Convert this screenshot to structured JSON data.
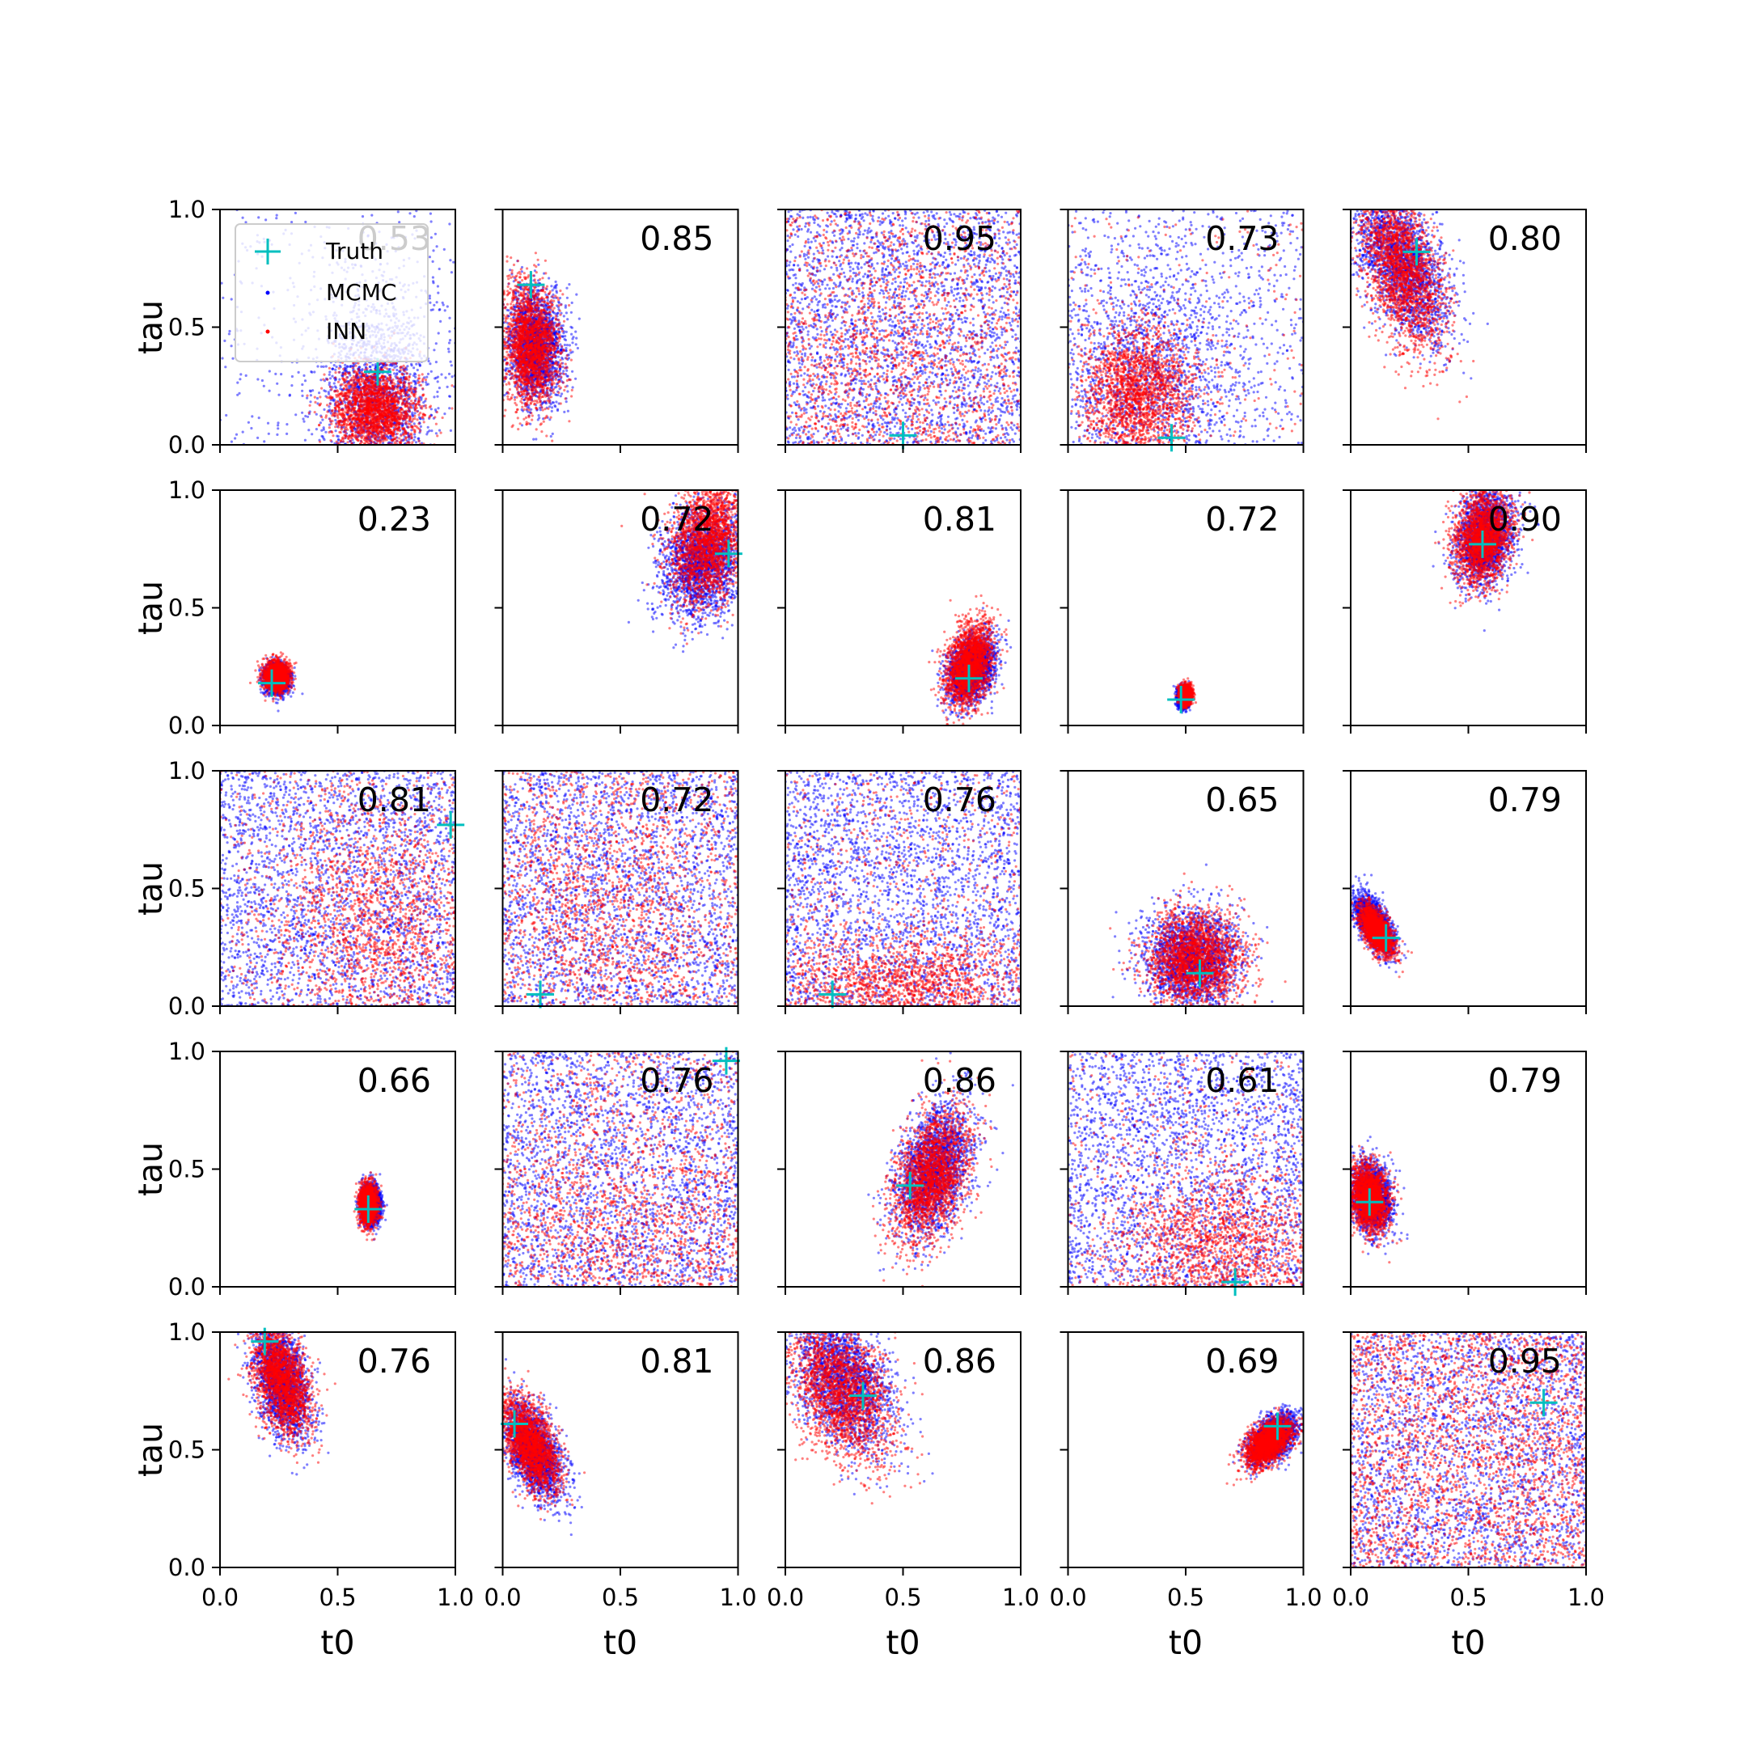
{
  "chart_data": {
    "type": "scatter",
    "rows": 5,
    "cols": 5,
    "xlabel": "t0",
    "ylabel": "tau",
    "xlim": [
      0,
      1
    ],
    "ylim": [
      0,
      1
    ],
    "xticks": [
      "0.0",
      "0.5",
      "1.0"
    ],
    "yticks": [
      "0.0",
      "0.5",
      "1.0"
    ],
    "colors": {
      "truth": "#00bfbf",
      "mcmc": "#0000ff",
      "inn": "#ff0000"
    },
    "legend": {
      "placement": "upper-left of first panel",
      "entries": [
        {
          "label": "Truth",
          "marker": "plus",
          "color": "#00bfbf"
        },
        {
          "label": "MCMC",
          "marker": "dot",
          "color": "#0000ff"
        },
        {
          "label": "INN",
          "marker": "dot",
          "color": "#ff0000"
        }
      ]
    },
    "panels": [
      {
        "label": "0.53",
        "truth": [
          0.67,
          0.31
        ],
        "mcmc": {
          "cx": 0.66,
          "cy": 0.2,
          "sx": 0.12,
          "sy": 0.22,
          "rho": 0.0,
          "uniform": 0.15
        },
        "inn": {
          "cx": 0.66,
          "cy": 0.15,
          "sx": 0.09,
          "sy": 0.09,
          "rho": 0.0
        }
      },
      {
        "label": "0.85",
        "truth": [
          0.12,
          0.68
        ],
        "mcmc": {
          "cx": 0.14,
          "cy": 0.42,
          "sx": 0.06,
          "sy": 0.12,
          "rho": -0.1
        },
        "inn": {
          "cx": 0.12,
          "cy": 0.42,
          "sx": 0.06,
          "sy": 0.13,
          "rho": -0.1
        }
      },
      {
        "label": "0.95",
        "truth": [
          0.5,
          0.04
        ],
        "mcmc": {
          "cx": 0.5,
          "cy": 0.5,
          "uniform": 1.0
        },
        "inn": {
          "cx": 0.45,
          "cy": 0.3,
          "sx": 0.35,
          "sy": 0.35,
          "rho": 0.0,
          "uniform": 0.5
        }
      },
      {
        "label": "0.73",
        "truth": [
          0.44,
          0.03
        ],
        "mcmc": {
          "cx": 0.35,
          "cy": 0.3,
          "sx": 0.2,
          "sy": 0.25,
          "rho": 0.0,
          "uniform": 0.3
        },
        "inn": {
          "cx": 0.3,
          "cy": 0.22,
          "sx": 0.12,
          "sy": 0.14,
          "rho": 0.0,
          "uniform": 0.1
        }
      },
      {
        "label": "0.80",
        "truth": [
          0.28,
          0.82
        ],
        "mcmc": {
          "cx": 0.22,
          "cy": 0.78,
          "sx": 0.1,
          "sy": 0.16,
          "rho": -0.5
        },
        "inn": {
          "cx": 0.22,
          "cy": 0.75,
          "sx": 0.09,
          "sy": 0.17,
          "rho": -0.5
        }
      },
      {
        "label": "0.23",
        "truth": [
          0.22,
          0.18
        ],
        "mcmc": {
          "cx": 0.24,
          "cy": 0.2,
          "sx": 0.025,
          "sy": 0.03,
          "rho": 0.0
        },
        "inn": {
          "cx": 0.24,
          "cy": 0.21,
          "sx": 0.025,
          "sy": 0.03,
          "rho": 0.0
        }
      },
      {
        "label": "0.72",
        "truth": [
          0.96,
          0.73
        ],
        "mcmc": {
          "cx": 0.85,
          "cy": 0.7,
          "sx": 0.09,
          "sy": 0.12,
          "rho": 0.2
        },
        "inn": {
          "cx": 0.87,
          "cy": 0.78,
          "sx": 0.08,
          "sy": 0.13,
          "rho": 0.2
        }
      },
      {
        "label": "0.81",
        "truth": [
          0.78,
          0.2
        ],
        "mcmc": {
          "cx": 0.79,
          "cy": 0.24,
          "sx": 0.05,
          "sy": 0.07,
          "rho": 0.3
        },
        "inn": {
          "cx": 0.78,
          "cy": 0.26,
          "sx": 0.05,
          "sy": 0.09,
          "rho": 0.3
        }
      },
      {
        "label": "0.72",
        "truth": [
          0.48,
          0.11
        ],
        "mcmc": {
          "cx": 0.49,
          "cy": 0.12,
          "sx": 0.012,
          "sy": 0.02,
          "rho": 0.0
        },
        "inn": {
          "cx": 0.5,
          "cy": 0.13,
          "sx": 0.012,
          "sy": 0.02,
          "rho": 0.0
        }
      },
      {
        "label": "0.90",
        "truth": [
          0.56,
          0.77
        ],
        "mcmc": {
          "cx": 0.57,
          "cy": 0.8,
          "sx": 0.06,
          "sy": 0.1,
          "rho": 0.2
        },
        "inn": {
          "cx": 0.56,
          "cy": 0.8,
          "sx": 0.06,
          "sy": 0.1,
          "rho": 0.2
        }
      },
      {
        "label": "0.81",
        "truth": [
          0.98,
          0.77
        ],
        "mcmc": {
          "cx": 0.5,
          "cy": 0.5,
          "uniform": 1.0
        },
        "inn": {
          "cx": 0.68,
          "cy": 0.35,
          "sx": 0.22,
          "sy": 0.3,
          "rho": 0.0,
          "uniform": 0.2
        }
      },
      {
        "label": "0.72",
        "truth": [
          0.16,
          0.05
        ],
        "mcmc": {
          "cx": 0.5,
          "cy": 0.5,
          "uniform": 1.0
        },
        "inn": {
          "cx": 0.4,
          "cy": 0.35,
          "sx": 0.3,
          "sy": 0.3,
          "rho": 0.0,
          "uniform": 0.5
        }
      },
      {
        "label": "0.76",
        "truth": [
          0.2,
          0.05
        ],
        "mcmc": {
          "cx": 0.5,
          "cy": 0.5,
          "uniform": 1.0
        },
        "inn": {
          "cx": 0.5,
          "cy": 0.1,
          "sx": 0.3,
          "sy": 0.1,
          "rho": 0.0,
          "uniform": 0.3
        }
      },
      {
        "label": "0.65",
        "truth": [
          0.56,
          0.14
        ],
        "mcmc": {
          "cx": 0.53,
          "cy": 0.2,
          "sx": 0.1,
          "sy": 0.1,
          "rho": 0.0
        },
        "inn": {
          "cx": 0.54,
          "cy": 0.2,
          "sx": 0.1,
          "sy": 0.1,
          "rho": 0.0
        }
      },
      {
        "label": "0.79",
        "truth": [
          0.15,
          0.29
        ],
        "mcmc": {
          "cx": 0.1,
          "cy": 0.35,
          "sx": 0.04,
          "sy": 0.06,
          "rho": -0.6
        },
        "inn": {
          "cx": 0.11,
          "cy": 0.32,
          "sx": 0.035,
          "sy": 0.05,
          "rho": -0.6
        }
      },
      {
        "label": "0.66",
        "truth": [
          0.63,
          0.33
        ],
        "mcmc": {
          "cx": 0.64,
          "cy": 0.35,
          "sx": 0.02,
          "sy": 0.04,
          "rho": 0.0
        },
        "inn": {
          "cx": 0.63,
          "cy": 0.35,
          "sx": 0.018,
          "sy": 0.04,
          "rho": 0.0
        }
      },
      {
        "label": "0.76",
        "truth": [
          0.95,
          0.96
        ],
        "mcmc": {
          "cx": 0.5,
          "cy": 0.5,
          "uniform": 1.0
        },
        "inn": {
          "cx": 0.5,
          "cy": 0.2,
          "sx": 0.35,
          "sy": 0.25,
          "rho": 0.0,
          "uniform": 0.4
        }
      },
      {
        "label": "0.86",
        "truth": [
          0.53,
          0.43
        ],
        "mcmc": {
          "cx": 0.63,
          "cy": 0.5,
          "sx": 0.08,
          "sy": 0.14,
          "rho": 0.4
        },
        "inn": {
          "cx": 0.62,
          "cy": 0.47,
          "sx": 0.08,
          "sy": 0.14,
          "rho": 0.4
        }
      },
      {
        "label": "0.61",
        "truth": [
          0.71,
          0.02
        ],
        "mcmc": {
          "cx": 0.5,
          "cy": 0.5,
          "uniform": 1.0
        },
        "inn": {
          "cx": 0.65,
          "cy": 0.15,
          "sx": 0.22,
          "sy": 0.18,
          "rho": 0.0,
          "uniform": 0.2
        }
      },
      {
        "label": "0.79",
        "truth": [
          0.08,
          0.36
        ],
        "mcmc": {
          "cx": 0.09,
          "cy": 0.38,
          "sx": 0.04,
          "sy": 0.07,
          "rho": -0.2
        },
        "inn": {
          "cx": 0.08,
          "cy": 0.38,
          "sx": 0.04,
          "sy": 0.07,
          "rho": -0.2
        }
      },
      {
        "label": "0.76",
        "truth": [
          0.19,
          0.96
        ],
        "mcmc": {
          "cx": 0.26,
          "cy": 0.8,
          "sx": 0.06,
          "sy": 0.12,
          "rho": -0.4
        },
        "inn": {
          "cx": 0.26,
          "cy": 0.8,
          "sx": 0.06,
          "sy": 0.12,
          "rho": -0.4
        }
      },
      {
        "label": "0.81",
        "truth": [
          0.05,
          0.61
        ],
        "mcmc": {
          "cx": 0.13,
          "cy": 0.5,
          "sx": 0.06,
          "sy": 0.1,
          "rho": -0.5
        },
        "inn": {
          "cx": 0.12,
          "cy": 0.52,
          "sx": 0.06,
          "sy": 0.1,
          "rho": -0.5
        }
      },
      {
        "label": "0.86",
        "truth": [
          0.33,
          0.73
        ],
        "mcmc": {
          "cx": 0.24,
          "cy": 0.8,
          "sx": 0.11,
          "sy": 0.15,
          "rho": -0.4
        },
        "inn": {
          "cx": 0.24,
          "cy": 0.76,
          "sx": 0.11,
          "sy": 0.16,
          "rho": -0.4
        }
      },
      {
        "label": "0.69",
        "truth": [
          0.89,
          0.6
        ],
        "mcmc": {
          "cx": 0.87,
          "cy": 0.55,
          "sx": 0.05,
          "sy": 0.05,
          "rho": 0.5
        },
        "inn": {
          "cx": 0.85,
          "cy": 0.53,
          "sx": 0.05,
          "sy": 0.05,
          "rho": 0.5
        }
      },
      {
        "label": "0.95",
        "truth": [
          0.82,
          0.7
        ],
        "mcmc": {
          "cx": 0.5,
          "cy": 0.5,
          "uniform": 1.0
        },
        "inn": {
          "cx": 0.5,
          "cy": 0.5,
          "uniform": 1.0
        }
      }
    ]
  }
}
